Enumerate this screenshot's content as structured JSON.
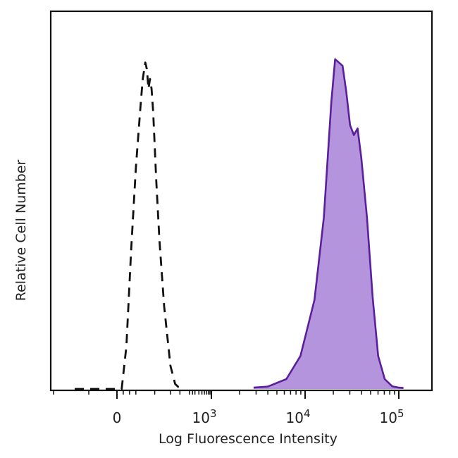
{
  "chart_data": {
    "type": "area",
    "x_scale": "biexponential",
    "xlabel": "Log Fluorescence Intensity",
    "ylabel": "Relative Cell Number",
    "x_ticks": [
      {
        "value": 0,
        "base": "0",
        "exp": ""
      },
      {
        "value": 1000,
        "base": "10",
        "exp": "3"
      },
      {
        "value": 10000,
        "base": "10",
        "exp": "4"
      },
      {
        "value": 100000,
        "base": "10",
        "exp": "5"
      }
    ],
    "y_range": [
      0,
      100
    ],
    "grid": false,
    "series": [
      {
        "style": "dashed",
        "fill": false,
        "color": "#111111",
        "x_log_pos": [
          -0.3,
          0.0,
          0.15,
          0.3,
          0.45,
          0.6,
          0.75,
          0.82,
          0.9,
          0.95,
          1.0,
          1.05,
          1.1,
          1.15,
          1.25,
          1.35,
          1.5,
          1.7,
          1.85,
          1.95,
          2.05,
          2.1
        ],
        "y": [
          0,
          0,
          0,
          13,
          42,
          67,
          86,
          94,
          99,
          97,
          91,
          94,
          91,
          84,
          63,
          45,
          25,
          7,
          1.5,
          0.6,
          0.4,
          0.3
        ]
      },
      {
        "style": "solid",
        "fill": true,
        "color": "#5b1f9c",
        "fill_color": "#b494dc",
        "x_log_pos": [
          3.45,
          3.6,
          3.8,
          3.95,
          4.1,
          4.2,
          4.28,
          4.32,
          4.36,
          4.4,
          4.44,
          4.48,
          4.52,
          4.56,
          4.6,
          4.66,
          4.72,
          4.78,
          4.85,
          4.93,
          5.0,
          5.05
        ],
        "y": [
          0.4,
          0.7,
          3,
          10,
          27,
          52,
          87,
          100,
          99,
          98,
          90,
          80,
          77,
          79,
          70,
          52,
          28,
          10,
          3,
          0.8,
          0.4,
          0.3
        ]
      }
    ]
  }
}
